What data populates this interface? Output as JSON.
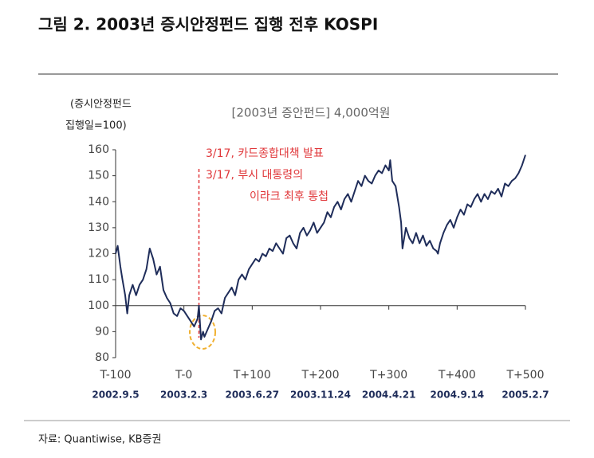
{
  "chart_data": {
    "type": "line",
    "title": "그림 2. 2003년 증시안정펀드 집행 전후 KOSPI",
    "subtitle": "[2003년 증안펀드] 4,000억원",
    "y_label": [
      "(증시안정펀드",
      "집행일=100)"
    ],
    "source": "자료: Quantiwise, KB증권",
    "annotations": [
      "3/17, 카드종합대책 발표",
      "3/17, 부시 대통령의",
      "이라크 최후 통첩"
    ],
    "event_x": 22,
    "xlim": [
      -100,
      500
    ],
    "xticks": [
      {
        "value": -100,
        "label": "T-100"
      },
      {
        "value": 0,
        "label": "T-0"
      },
      {
        "value": 100,
        "label": "T+100"
      },
      {
        "value": 200,
        "label": "T+200"
      },
      {
        "value": 300,
        "label": "T+300"
      },
      {
        "value": 400,
        "label": "T+400"
      },
      {
        "value": 500,
        "label": "T+500"
      }
    ],
    "xtick_dates": [
      "2002.9.5",
      "2003.2.3",
      "2003.6.27",
      "2003.11.24",
      "2004.4.21",
      "2004.9.14",
      "2005.2.7"
    ],
    "ylim": [
      80,
      160
    ],
    "yticks": [
      80,
      90,
      100,
      110,
      120,
      130,
      140,
      150,
      160
    ],
    "baseline": 100,
    "series": [
      {
        "name": "KOSPI",
        "color": "#1f2d5a",
        "x": [
          -100,
          -97,
          -93,
          -90,
          -86,
          -83,
          -80,
          -75,
          -70,
          -65,
          -60,
          -55,
          -50,
          -45,
          -40,
          -35,
          -30,
          -25,
          -20,
          -15,
          -10,
          -5,
          0,
          5,
          10,
          15,
          20,
          22,
          25,
          28,
          30,
          35,
          40,
          45,
          50,
          55,
          60,
          65,
          70,
          75,
          80,
          85,
          90,
          95,
          100,
          105,
          110,
          115,
          120,
          125,
          130,
          135,
          140,
          145,
          150,
          155,
          160,
          165,
          170,
          175,
          180,
          185,
          190,
          195,
          200,
          205,
          210,
          215,
          220,
          225,
          230,
          235,
          240,
          245,
          250,
          255,
          260,
          265,
          270,
          275,
          280,
          285,
          290,
          295,
          300,
          302,
          305,
          310,
          315,
          318,
          320,
          325,
          330,
          335,
          340,
          345,
          350,
          355,
          360,
          365,
          370,
          372,
          375,
          380,
          385,
          390,
          395,
          400,
          405,
          410,
          415,
          420,
          425,
          430,
          435,
          440,
          445,
          450,
          455,
          460,
          465,
          470,
          475,
          480,
          485,
          490,
          495,
          500
        ],
        "values": [
          120,
          123,
          115,
          110,
          104,
          97,
          104,
          108,
          104,
          108,
          110,
          114,
          122,
          118,
          112,
          115,
          106,
          103,
          101,
          97,
          96,
          99,
          98,
          96,
          94,
          92,
          95,
          100,
          87,
          90,
          88,
          91,
          94,
          98,
          99,
          97,
          103,
          105,
          107,
          104,
          110,
          112,
          110,
          114,
          116,
          118,
          117,
          120,
          119,
          122,
          121,
          124,
          122,
          120,
          126,
          127,
          124,
          122,
          128,
          130,
          127,
          129,
          132,
          128,
          130,
          132,
          136,
          134,
          138,
          140,
          137,
          141,
          143,
          140,
          144,
          148,
          146,
          150,
          148,
          147,
          150,
          152,
          151,
          154,
          152,
          156,
          148,
          146,
          138,
          132,
          122,
          130,
          126,
          124,
          128,
          124,
          127,
          123,
          125,
          122,
          121,
          120,
          124,
          128,
          131,
          133,
          130,
          134,
          137,
          135,
          139,
          138,
          141,
          143,
          140,
          143,
          141,
          144,
          143,
          145,
          142,
          147,
          146,
          148,
          149,
          151,
          154,
          158
        ]
      }
    ]
  }
}
